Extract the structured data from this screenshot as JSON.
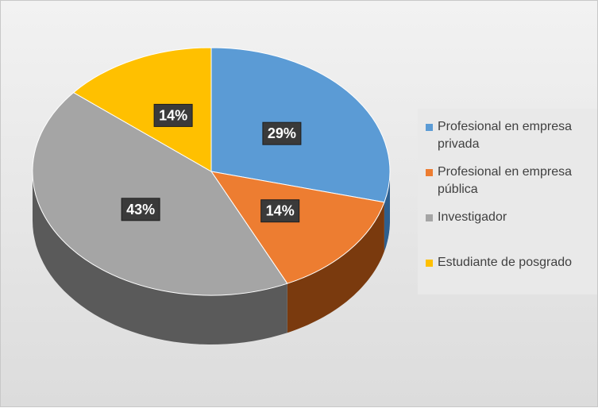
{
  "chart_data": {
    "type": "pie",
    "categories": [
      "Profesional en empresa privada",
      "Profesional en empresa pública",
      "Investigador",
      "Estudiante de posgrado"
    ],
    "values": [
      29,
      14,
      43,
      14
    ],
    "data_labels": [
      "29%",
      "14%",
      "43%",
      "14%"
    ],
    "colors": [
      "#5b9bd5",
      "#ed7d31",
      "#a5a5a5",
      "#ffc000"
    ],
    "side_colors": [
      "#2e5f8e",
      "#7a3a0e",
      "#5a5a5a",
      "#8a6800"
    ],
    "legend_position": "right",
    "style": "3d-pie"
  }
}
